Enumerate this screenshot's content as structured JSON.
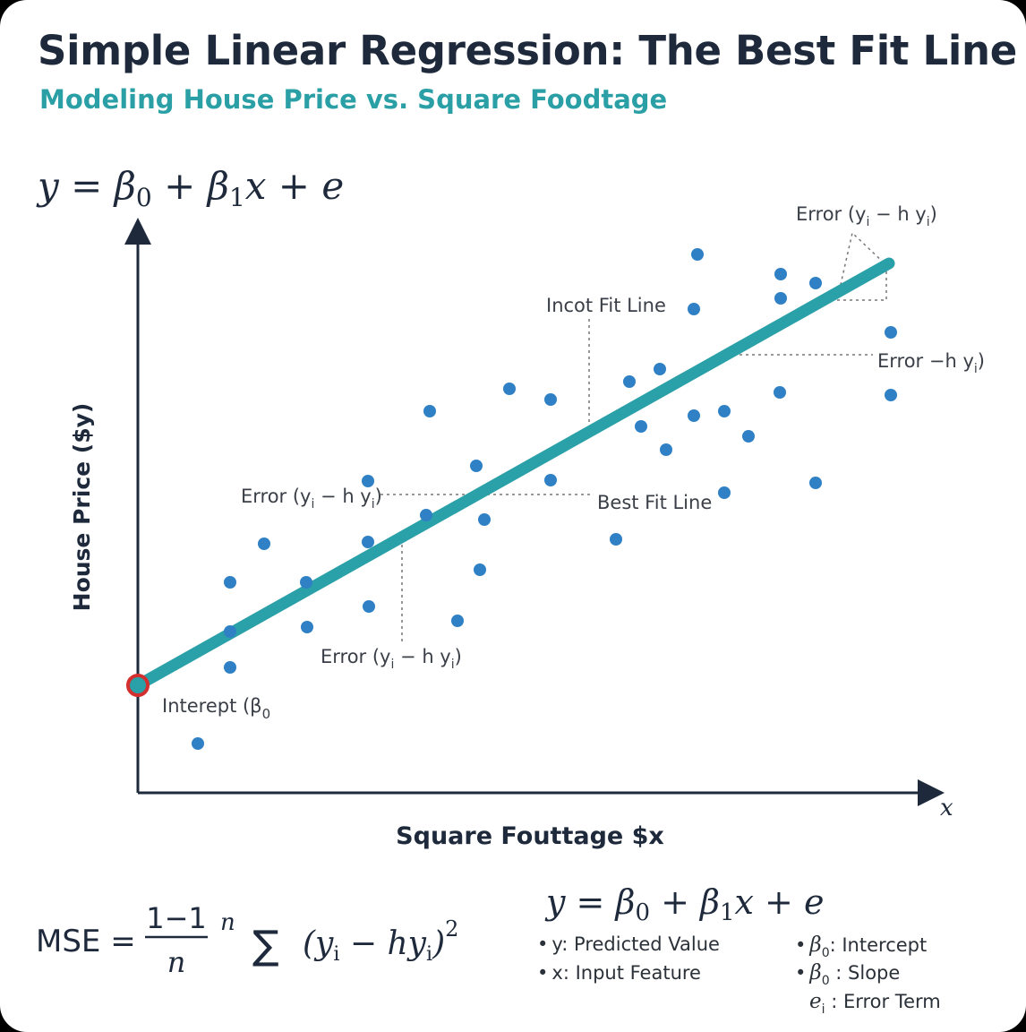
{
  "header": {
    "title": "Simple Linear Regression: The Best Fit Line",
    "subtitle": "Modeling House Price vs. Square Foodtage"
  },
  "equation_top": {
    "y": "y",
    "eq": " = ",
    "beta": "β",
    "sub0": "0",
    "plus": " + ",
    "sub1": "1",
    "x": "x",
    "plus2": " + ",
    "e": "e"
  },
  "colors": {
    "title": "#1e2a3b",
    "accent": "#2a9fa6",
    "line": "#2aa0a8",
    "points": "#2f80c4",
    "intercept_ring": "#d32f2f",
    "axis": "#1e2a3b",
    "annotation": "#3a3f47"
  },
  "annotations": {
    "error_top_right": {
      "prefix": "Error (y",
      "sub": "i",
      "mid": " − h  y",
      "sub2": "i",
      "suffix": ")"
    },
    "incot_fit_line": "Incot Fit Line",
    "error_right": {
      "prefix": "Error −h  y",
      "sub": "i",
      "suffix": ")"
    },
    "error_left": {
      "prefix": "Error (y",
      "sub": "i",
      "mid": " − h  y",
      "sub2": "i",
      "suffix": ")"
    },
    "best_fit_line": "Best Fit Line",
    "error_bottom": {
      "prefix": "Error (y",
      "sub": "i",
      "mid": " − h y",
      "sub2": "i",
      "suffix": ")"
    },
    "intercept": {
      "prefix": "Interept (β",
      "sub": "0"
    }
  },
  "chart_data": {
    "type": "scatter",
    "xlabel": "Square Fouttage $x",
    "ylabel": "House Price ($y)",
    "x_axis_symbol": "x",
    "points": [
      [
        221,
        830
      ],
      [
        257,
        745
      ],
      [
        257,
        650
      ],
      [
        257,
        705
      ],
      [
        295,
        607
      ],
      [
        342,
        650
      ],
      [
        343,
        700
      ],
      [
        411,
        605
      ],
      [
        412,
        677
      ],
      [
        411,
        537
      ],
      [
        476,
        575
      ],
      [
        480,
        459
      ],
      [
        511,
        693
      ],
      [
        532,
        520
      ],
      [
        536,
        636
      ],
      [
        541,
        580
      ],
      [
        569,
        434
      ],
      [
        615,
        446
      ],
      [
        615,
        536
      ],
      [
        688,
        602
      ],
      [
        703,
        426
      ],
      [
        716,
        476
      ],
      [
        737,
        412
      ],
      [
        744,
        502
      ],
      [
        775,
        464
      ],
      [
        775,
        345
      ],
      [
        779,
        284
      ],
      [
        809,
        459
      ],
      [
        809,
        550
      ],
      [
        836,
        487
      ],
      [
        871,
        438
      ],
      [
        872,
        306
      ],
      [
        872,
        333
      ],
      [
        911,
        316
      ],
      [
        911,
        539
      ],
      [
        995,
        371
      ],
      [
        995,
        441
      ]
    ],
    "best_fit_line": {
      "start": [
        154,
        765
      ],
      "end": [
        993,
        294
      ]
    },
    "intercept_point": [
      154,
      765
    ]
  },
  "formula": {
    "mse_label": "MSE =",
    "frac_num": "1−1",
    "frac_den": "n",
    "n_sup": "n",
    "sigma": "∑",
    "paren_open": "(y",
    "sub_i": "i",
    "minus_hy": " − hy",
    "sub_i2": "i",
    "paren_close": ")",
    "sq": "2"
  },
  "legend": {
    "equation": {
      "y": "y",
      "eq": " = ",
      "beta": "β",
      "sub0": "0",
      "plus": " + ",
      "sub1": "1",
      "x": "x",
      "plus2": " + ",
      "e": "e"
    },
    "items_left": [
      "y: Predicted Value",
      "x: Input Feature"
    ],
    "items_right": [
      {
        "sym": "β",
        "sub": "0",
        "text": ": Intercept"
      },
      {
        "sym": "β",
        "sub": "0",
        "text": " : Slope"
      },
      {
        "sym": "e",
        "sub": "i",
        "text": " : Error Term"
      }
    ],
    "bullet": "•"
  }
}
